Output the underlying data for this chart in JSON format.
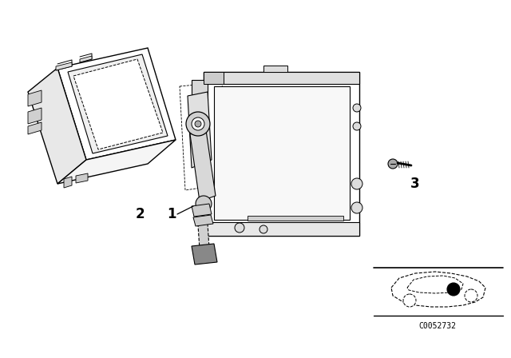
{
  "bg_color": "#ffffff",
  "line_color": "#000000",
  "label_1": "1",
  "label_2": "2",
  "label_3": "3",
  "part_number": "C0052732",
  "fig_width": 6.4,
  "fig_height": 4.48,
  "dpi": 100
}
